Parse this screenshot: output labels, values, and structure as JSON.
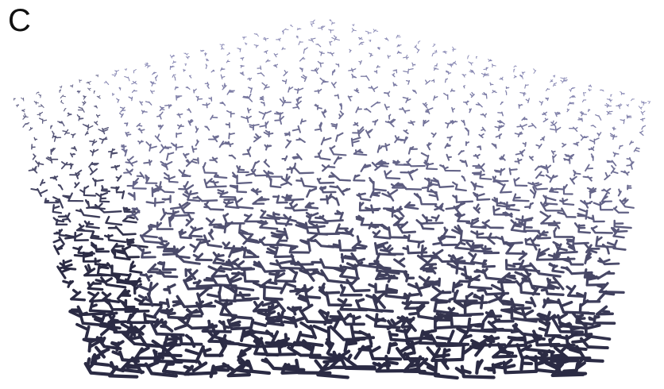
{
  "figure": {
    "panel_label": "C",
    "stroke_color_far": "#8c8cb8",
    "stroke_color_near": "#2b2b44",
    "background_color": "#ffffff"
  }
}
